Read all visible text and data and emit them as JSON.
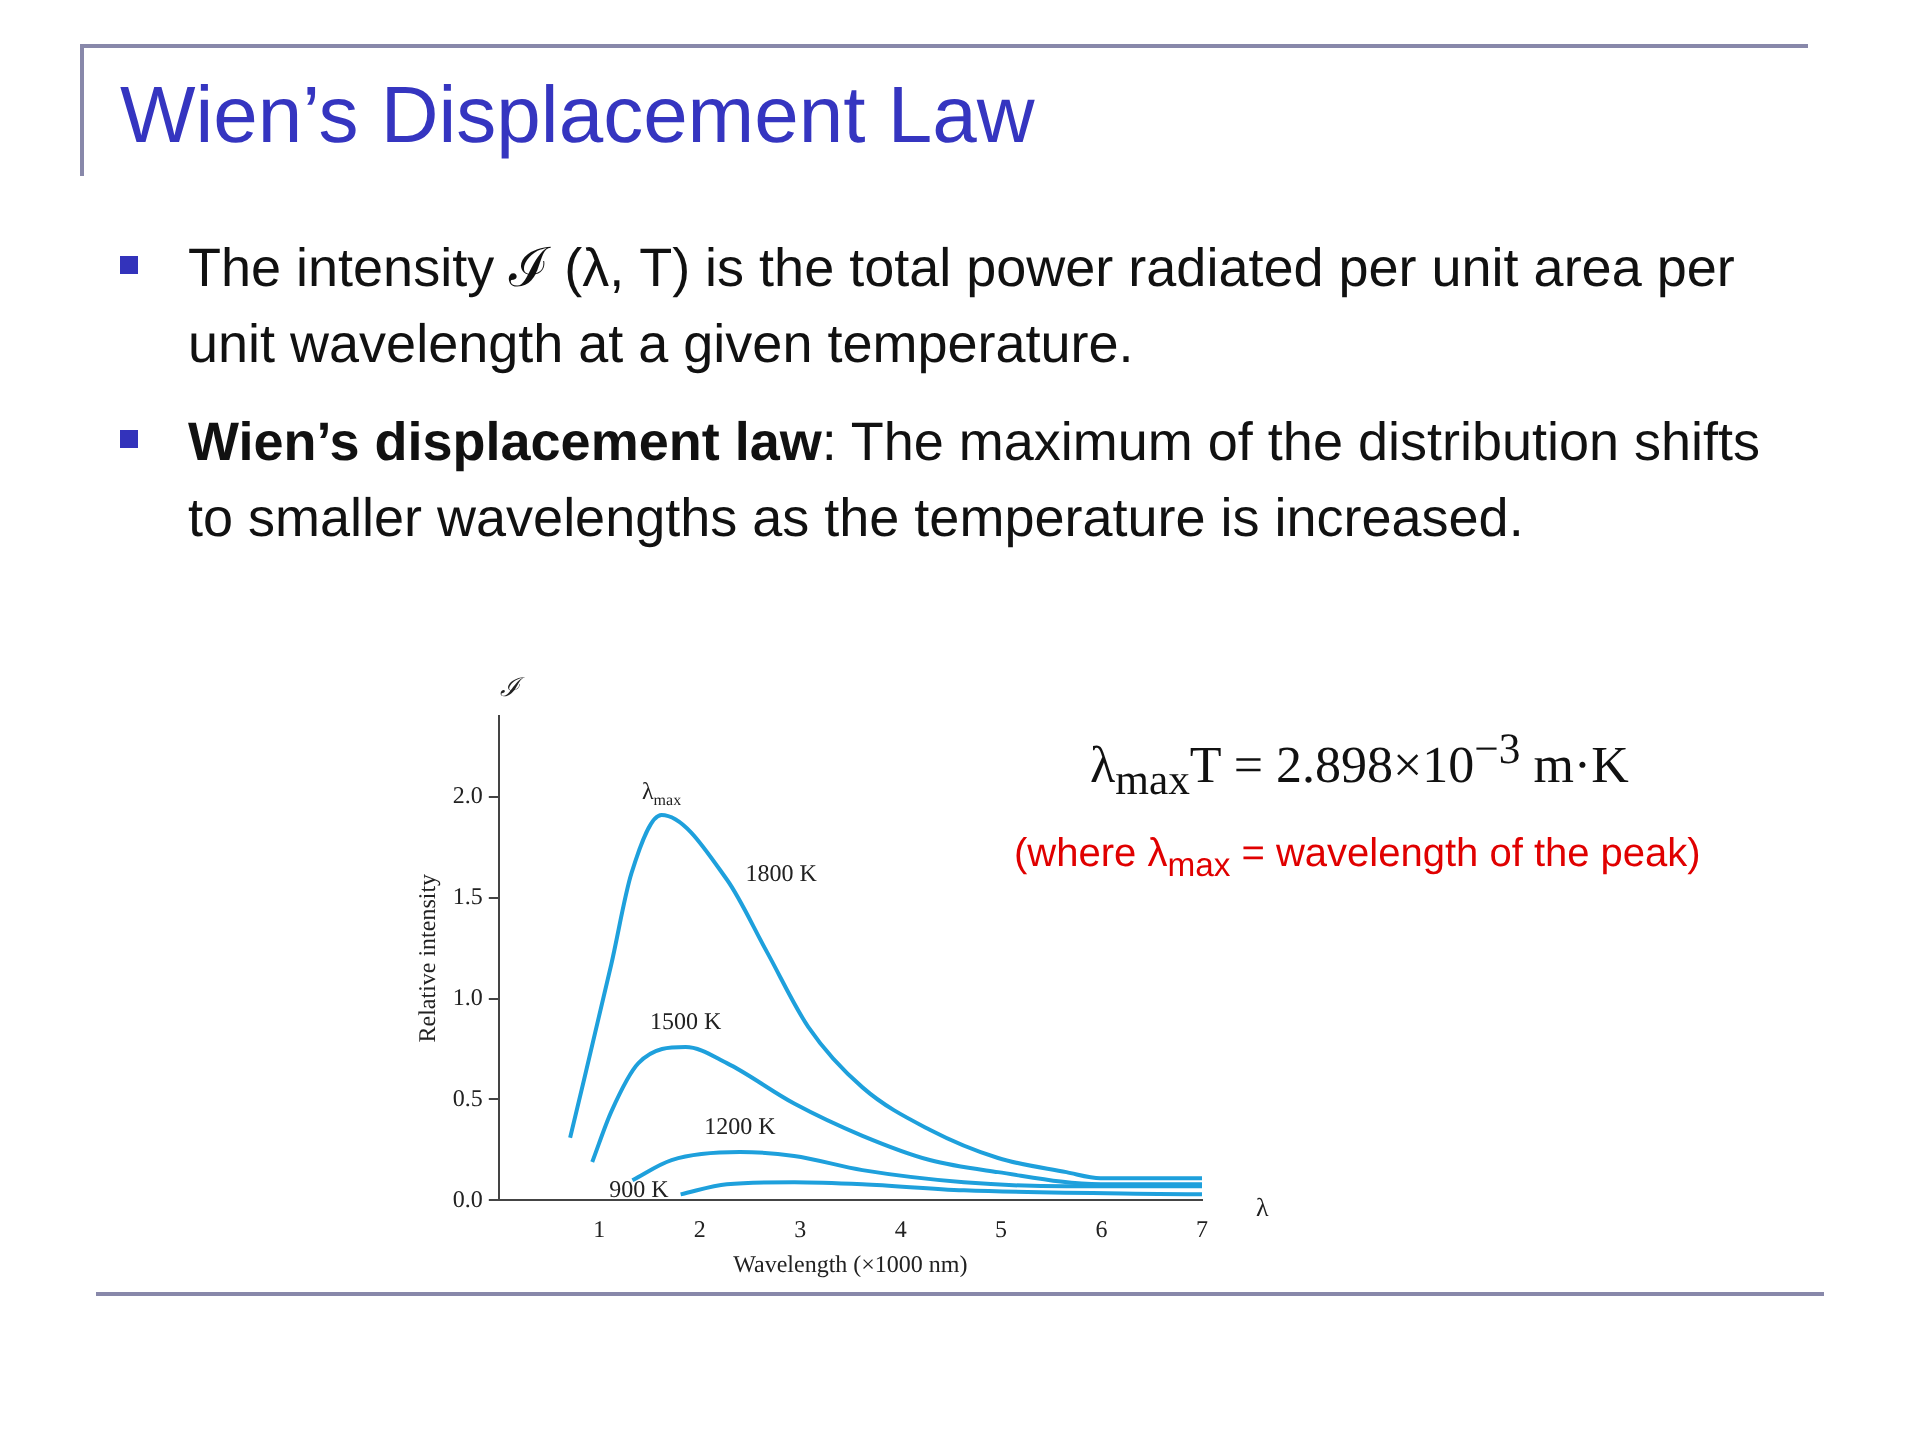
{
  "chart_data": {
    "type": "line",
    "title": "Wien’s Displacement Law",
    "xlabel": "Wavelength (×1000 nm)",
    "ylabel": "Relative intensity",
    "annotations": [
      "The intensity ℐ (λ, T) is the total power radiated per unit area per unit wavelength at a given temperature.",
      "Wien’s displacement law: The maximum of the distribution shifts to smaller wavelengths as the temperature is increased.",
      "λ$_{max}$T = 2.898×10$^{−3}$ m·K",
      "(where λ$_{max}$ = wavelength of the peak)",
      "ℐ",
      "λ",
      {
        "text": "λ$_{max}$",
        "x": 1.62,
        "y": 1.91
      }
    ],
    "series": [
      {
        "name": "1800 K",
        "color": "#1ea0dc",
        "x": [
          0.71,
          1.12,
          1.32,
          1.62,
          2.27,
          2.67,
          3.08,
          3.62,
          4.29,
          4.97,
          5.65,
          5.99,
          7
        ],
        "values": [
          0.31,
          1.17,
          1.62,
          1.91,
          1.59,
          1.23,
          0.86,
          0.56,
          0.35,
          0.21,
          0.14,
          0.11,
          0.11
        ]
      },
      {
        "name": "1500 K",
        "color": "#1ea0dc",
        "x": [
          0.93,
          1.12,
          1.39,
          1.86,
          2.27,
          2.94,
          3.62,
          4.29,
          4.97,
          5.99,
          7
        ],
        "values": [
          0.19,
          0.44,
          0.68,
          0.76,
          0.68,
          0.48,
          0.32,
          0.2,
          0.14,
          0.08,
          0.08
        ]
      },
      {
        "name": "1200 K",
        "color": "#1ea0dc",
        "x": [
          1.33,
          1.72,
          2.4,
          2.94,
          3.62,
          4.63,
          5.65,
          7
        ],
        "values": [
          0.1,
          0.2,
          0.24,
          0.22,
          0.15,
          0.09,
          0.07,
          0.07
        ]
      },
      {
        "name": "900 K",
        "color": "#1ea0dc",
        "x": [
          1.81,
          2.27,
          2.94,
          3.62,
          4.63,
          7
        ],
        "values": [
          0.03,
          0.08,
          0.09,
          0.08,
          0.05,
          0.03
        ]
      }
    ],
    "xlim": [
      0,
      7
    ],
    "xticks": [
      1,
      2,
      3,
      4,
      5,
      6,
      7
    ],
    "ylim": [
      0,
      2.4
    ],
    "yticks": [
      {
        "value": 0,
        "label": "0.0"
      },
      {
        "value": 0.5,
        "label": "0.5"
      },
      {
        "value": 1,
        "label": "1.0"
      },
      {
        "value": 1.5,
        "label": "1.5"
      },
      {
        "value": 2,
        "label": "2.0"
      }
    ],
    "grid": false,
    "legend": false,
    "marker": "none",
    "line_style": "solid"
  }
}
